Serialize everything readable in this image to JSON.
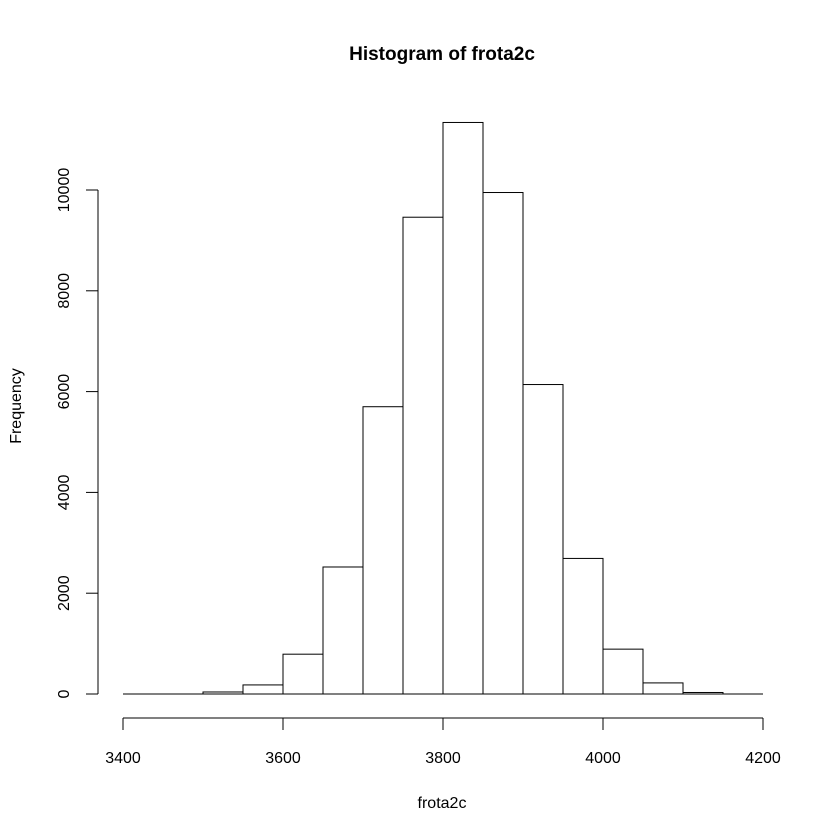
{
  "chart_data": {
    "type": "bar",
    "title": "Histogram of frota2c",
    "xlabel": "frota2c",
    "ylabel": "Frequency",
    "bin_edges": [
      3400,
      3450,
      3500,
      3550,
      3600,
      3650,
      3700,
      3750,
      3800,
      3850,
      3900,
      3950,
      4000,
      4050,
      4100,
      4150,
      4200
    ],
    "values": [
      0,
      0,
      40,
      180,
      790,
      2520,
      5700,
      9460,
      11340,
      9950,
      6140,
      2690,
      890,
      220,
      30,
      0
    ],
    "xlim": [
      3400,
      4200
    ],
    "ylim": [
      0,
      11340
    ],
    "x_ticks": [
      "3400",
      "3600",
      "3800",
      "4000",
      "4200"
    ],
    "y_ticks": [
      "0",
      "2000",
      "4000",
      "6000",
      "8000",
      "10000"
    ],
    "bar_fill": "#ffffff",
    "bar_stroke": "#000000",
    "grid": false,
    "legend": "none"
  }
}
